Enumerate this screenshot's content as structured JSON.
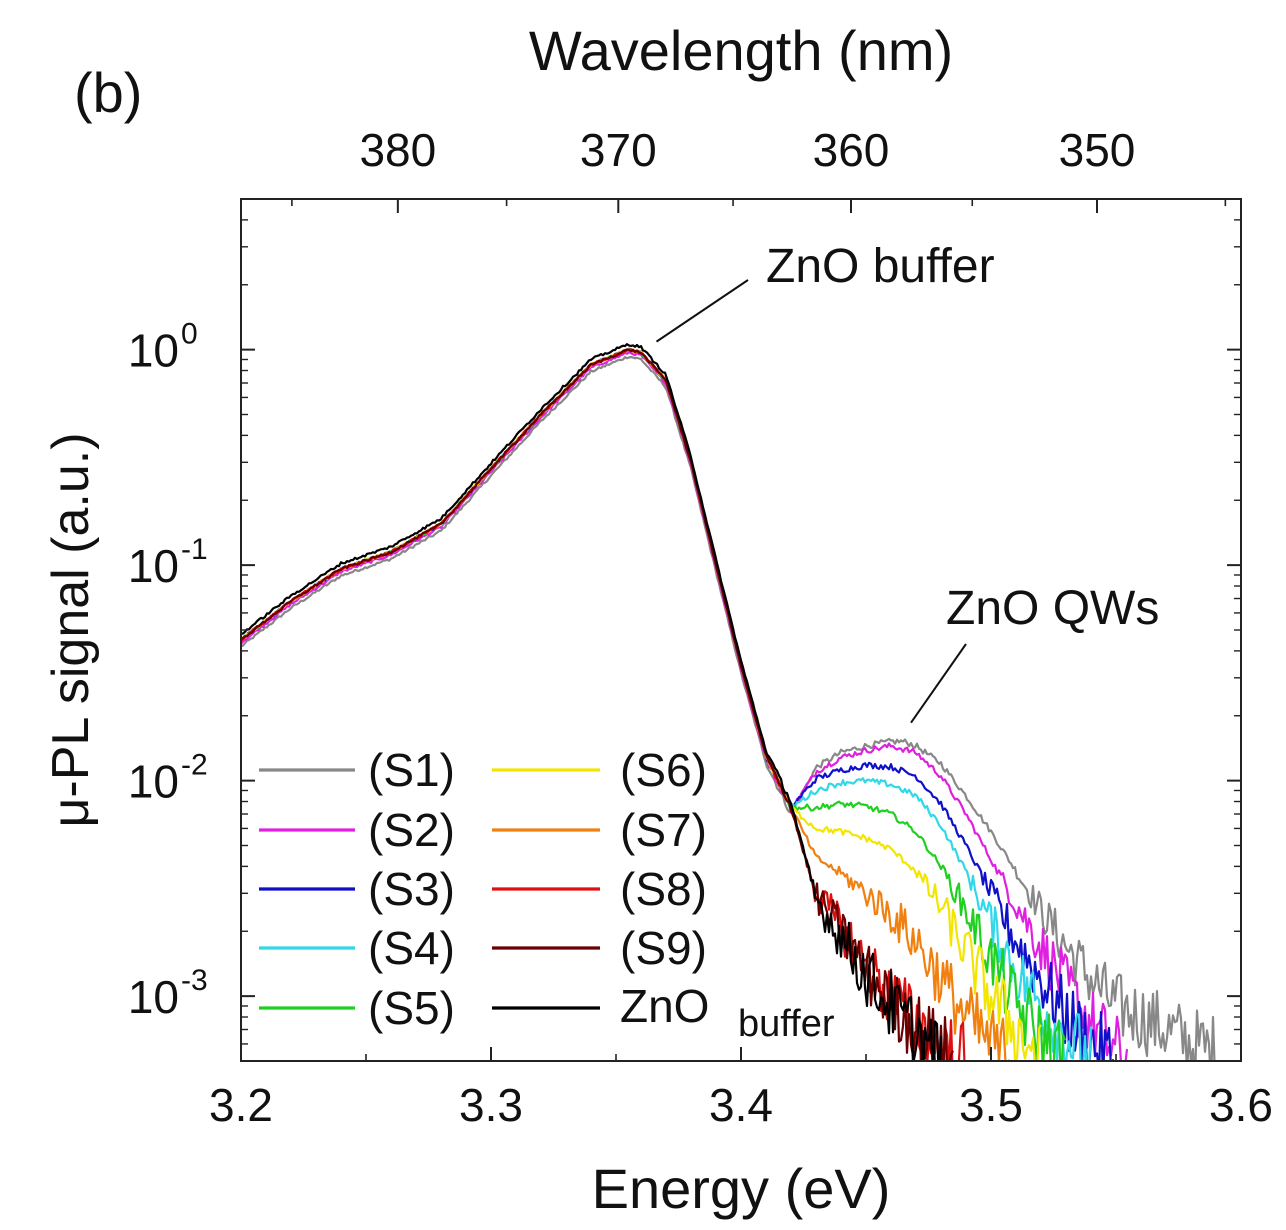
{
  "chart_data": {
    "type": "line",
    "panel_label": "(b)",
    "xlabel": "Energy (eV)",
    "x2label": "Wavelength (nm)",
    "ylabel": "μ-PL signal (a.u.)",
    "xlim": [
      3.2,
      3.6
    ],
    "ylim": [
      0.0005,
      5
    ],
    "yscale": "log",
    "x_ticks": [
      3.2,
      3.3,
      3.4,
      3.5,
      3.6
    ],
    "x_tick_labels": [
      "3.2",
      "3.3",
      "3.4",
      "3.5",
      "3.6"
    ],
    "x2_ticks_nm": [
      380,
      370,
      360,
      350
    ],
    "x2_tick_labels": [
      "380",
      "370",
      "360",
      "350"
    ],
    "y_ticks": [
      0.001,
      0.01,
      0.1,
      1
    ],
    "y_tick_labels": [
      {
        "base": "10",
        "exp": "-3"
      },
      {
        "base": "10",
        "exp": "-2"
      },
      {
        "base": "10",
        "exp": "-1"
      },
      {
        "base": "10",
        "exp": "0"
      }
    ],
    "annotations": [
      {
        "text": "ZnO buffer",
        "x": 3.363,
        "y": 1.0
      },
      {
        "text": "ZnO QWs",
        "x": 3.464,
        "y": 0.016
      }
    ],
    "legend": {
      "position": "lower-left",
      "columns": 2
    },
    "common_low_energy": {
      "x": [
        3.2,
        3.22,
        3.24,
        3.26,
        3.28,
        3.3,
        3.32,
        3.34,
        3.355,
        3.36,
        3.37,
        3.38,
        3.39,
        3.4,
        3.41,
        3.42
      ],
      "y": [
        0.045,
        0.068,
        0.096,
        0.115,
        0.155,
        0.28,
        0.5,
        0.85,
        1.0,
        0.97,
        0.72,
        0.3,
        0.1,
        0.034,
        0.013,
        0.0075
      ]
    },
    "series": [
      {
        "name": "(S1)",
        "color": "#888888",
        "offset": 0.93,
        "x": [
          3.42,
          3.43,
          3.44,
          3.45,
          3.46,
          3.465,
          3.47,
          3.48,
          3.49,
          3.5,
          3.51,
          3.52,
          3.53,
          3.54,
          3.55,
          3.56,
          3.57,
          3.58,
          3.59
        ],
        "y": [
          0.0085,
          0.0115,
          0.0135,
          0.0145,
          0.0152,
          0.0152,
          0.0145,
          0.012,
          0.0085,
          0.0058,
          0.0038,
          0.0025,
          0.0017,
          0.0012,
          0.0009,
          0.0008,
          0.0007,
          0.0006,
          0.00055
        ]
      },
      {
        "name": "(S2)",
        "color": "#e020e0",
        "offset": 0.97,
        "x": [
          3.42,
          3.43,
          3.44,
          3.45,
          3.46,
          3.47,
          3.48,
          3.49,
          3.5,
          3.51,
          3.52,
          3.53,
          3.54,
          3.55,
          3.555
        ],
        "y": [
          0.0082,
          0.011,
          0.0128,
          0.0138,
          0.0145,
          0.0135,
          0.0105,
          0.007,
          0.0043,
          0.0027,
          0.0017,
          0.0011,
          0.00075,
          0.00055,
          0.0005
        ]
      },
      {
        "name": "(S3)",
        "color": "#1010c8",
        "offset": 1.0,
        "x": [
          3.42,
          3.43,
          3.44,
          3.45,
          3.46,
          3.47,
          3.48,
          3.49,
          3.5,
          3.51,
          3.52,
          3.53,
          3.54,
          3.55
        ],
        "y": [
          0.0078,
          0.0102,
          0.0112,
          0.0118,
          0.0116,
          0.0105,
          0.0078,
          0.005,
          0.003,
          0.0018,
          0.0012,
          0.0008,
          0.0006,
          0.0005
        ]
      },
      {
        "name": "(S4)",
        "color": "#30d8e8",
        "offset": 1.0,
        "x": [
          3.42,
          3.43,
          3.44,
          3.45,
          3.46,
          3.47,
          3.48,
          3.49,
          3.5,
          3.51,
          3.52,
          3.53,
          3.54
        ],
        "y": [
          0.0072,
          0.009,
          0.0098,
          0.01,
          0.0096,
          0.0085,
          0.0062,
          0.0038,
          0.0022,
          0.0013,
          0.0009,
          0.00065,
          0.0005
        ]
      },
      {
        "name": "(S5)",
        "color": "#20d020",
        "offset": 1.0,
        "x": [
          3.42,
          3.43,
          3.44,
          3.45,
          3.46,
          3.47,
          3.48,
          3.49,
          3.5,
          3.51,
          3.52,
          3.53
        ],
        "y": [
          0.0065,
          0.0075,
          0.0078,
          0.0076,
          0.007,
          0.0058,
          0.004,
          0.0025,
          0.0015,
          0.0009,
          0.00065,
          0.0005
        ]
      },
      {
        "name": "(S6)",
        "color": "#f2e600",
        "offset": 1.0,
        "x": [
          3.42,
          3.43,
          3.44,
          3.45,
          3.46,
          3.47,
          3.48,
          3.49,
          3.5,
          3.51,
          3.52
        ],
        "y": [
          0.0058,
          0.006,
          0.0058,
          0.0054,
          0.0048,
          0.0038,
          0.0026,
          0.0016,
          0.001,
          0.0007,
          0.0005
        ]
      },
      {
        "name": "(S7)",
        "color": "#f08010",
        "offset": 1.0,
        "x": [
          3.42,
          3.43,
          3.44,
          3.45,
          3.46,
          3.47,
          3.48,
          3.49,
          3.5,
          3.51
        ],
        "y": [
          0.005,
          0.0044,
          0.0037,
          0.003,
          0.0024,
          0.0018,
          0.0012,
          0.0008,
          0.0006,
          0.0005
        ]
      },
      {
        "name": "(S8)",
        "color": "#e01010",
        "offset": 1.0,
        "x": [
          3.42,
          3.43,
          3.44,
          3.45,
          3.46,
          3.47,
          3.48,
          3.49
        ],
        "y": [
          0.0042,
          0.003,
          0.0021,
          0.0014,
          0.001,
          0.00075,
          0.00058,
          0.0005
        ]
      },
      {
        "name": "(S9)",
        "color": "#6a0000",
        "offset": 1.0,
        "x": [
          3.42,
          3.43,
          3.44,
          3.45,
          3.46,
          3.47,
          3.48,
          3.485
        ],
        "y": [
          0.0041,
          0.0029,
          0.002,
          0.0013,
          0.00095,
          0.00072,
          0.00056,
          0.0005
        ]
      },
      {
        "name": "ZnO buffer",
        "color": "#000000",
        "offset": 1.06,
        "x": [
          3.42,
          3.43,
          3.44,
          3.45,
          3.46,
          3.47,
          3.48
        ],
        "y": [
          0.004,
          0.0028,
          0.0019,
          0.00125,
          0.0009,
          0.00068,
          0.0005
        ]
      }
    ],
    "legend_entries": [
      {
        "label": "(S1)",
        "color": "#888888"
      },
      {
        "label": "(S2)",
        "color": "#e020e0"
      },
      {
        "label": "(S3)",
        "color": "#1010c8"
      },
      {
        "label": "(S4)",
        "color": "#30d8e8"
      },
      {
        "label": "(S5)",
        "color": "#20d020"
      },
      {
        "label": "(S6)",
        "color": "#f2e600"
      },
      {
        "label": "(S7)",
        "color": "#f08010"
      },
      {
        "label": "(S8)",
        "color": "#e01010"
      },
      {
        "label": "(S9)",
        "color": "#6a0000"
      },
      {
        "label_main": "ZnO",
        "label_sub": "buffer",
        "color": "#000000"
      }
    ]
  }
}
